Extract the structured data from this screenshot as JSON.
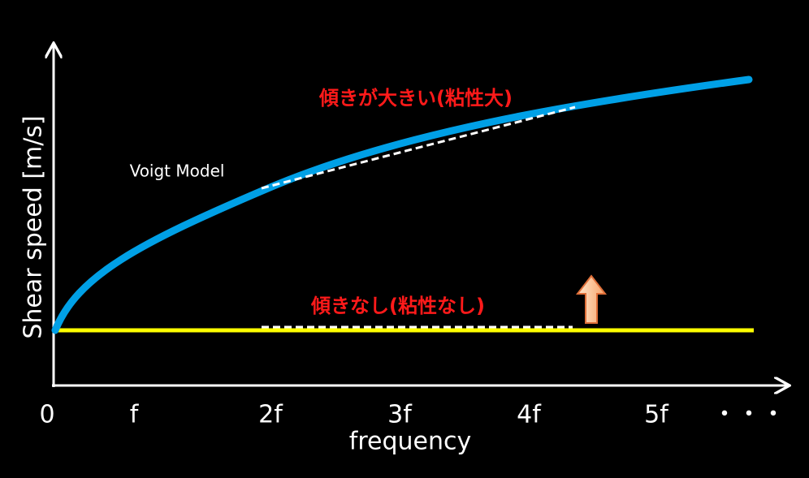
{
  "y_axis": {
    "label": "Shear speed [m/s]"
  },
  "x_axis": {
    "label": "frequency",
    "ticks": [
      "0",
      "f",
      "2f",
      "3f",
      "4f",
      "5f",
      "・・・"
    ]
  },
  "annotations": {
    "model": "Voigt Model",
    "steep": "傾きが大きい(粘性大)",
    "flat": "傾きなし(粘性なし)"
  }
}
